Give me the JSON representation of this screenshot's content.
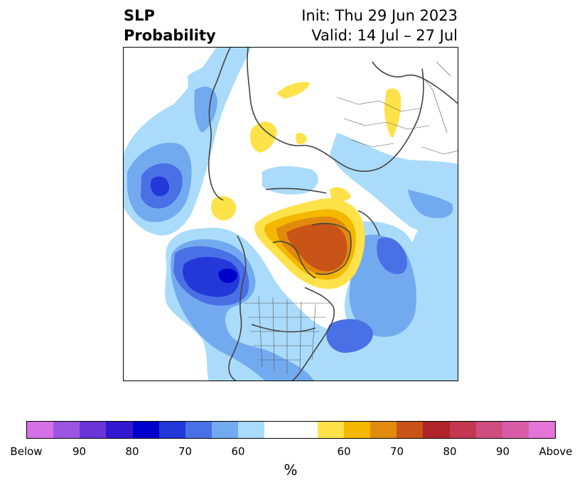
{
  "header": {
    "title_line1": "SLP",
    "title_line2": "Probability",
    "init": "Init: Thu 29 Jun 2023",
    "valid": "Valid: 14 Jul – 27 Jul"
  },
  "colorbar": {
    "label": "%",
    "colors": [
      "#d670e6",
      "#9b55e0",
      "#6a34d8",
      "#3418d0",
      "#0000cc",
      "#2238d8",
      "#4a70e6",
      "#72aaf0",
      "#aadbfa",
      "#ffffff",
      "#ffffff",
      "#ffe24a",
      "#f4b800",
      "#e08a0e",
      "#c85418",
      "#b0242a",
      "#c23850",
      "#ce4e80",
      "#d95ca8",
      "#e474d8"
    ],
    "ticks": [
      "Below",
      "90",
      "80",
      "70",
      "60",
      "60",
      "70",
      "80",
      "90",
      "Above"
    ]
  },
  "map": {
    "projection": "polar-stereographic",
    "colors": {
      "below_60": "#aadbfa",
      "below_65": "#72aaf0",
      "below_70": "#4a70e6",
      "below_75": "#2238d8",
      "below_80": "#0000cc",
      "above_60": "#ffe24a",
      "above_65": "#f4b800",
      "above_70": "#e08a0e",
      "above_75": "#c85418",
      "coast": "#444444"
    }
  }
}
